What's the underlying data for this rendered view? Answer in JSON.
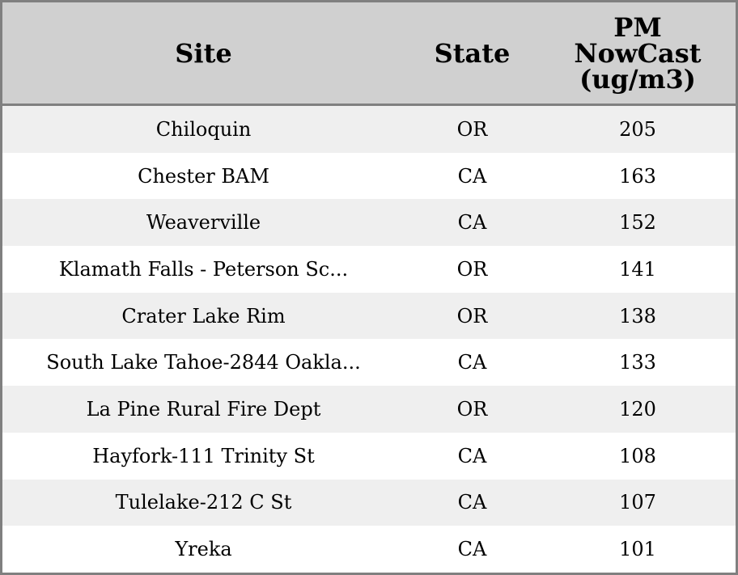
{
  "table": {
    "headers": [
      "Site",
      "State",
      "PM NowCast (ug/m3)"
    ],
    "header_lines": [
      "PM",
      "NowCast",
      "(ug/m3)"
    ],
    "rows": [
      [
        "Chiloquin",
        "OR",
        "205"
      ],
      [
        "Chester BAM",
        "CA",
        "163"
      ],
      [
        "Weaverville",
        "CA",
        "152"
      ],
      [
        "Klamath Falls - Peterson Sc...",
        "OR",
        "141"
      ],
      [
        "Crater Lake Rim",
        "OR",
        "138"
      ],
      [
        "South Lake Tahoe-2844 Oakla...",
        "CA",
        "133"
      ],
      [
        "La Pine Rural Fire Dept",
        "OR",
        "120"
      ],
      [
        "Hayfork-111 Trinity St",
        "CA",
        "108"
      ],
      [
        "Tulelake-212 C St",
        "CA",
        "107"
      ],
      [
        "Yreka",
        "CA",
        "101"
      ]
    ]
  },
  "colors": {
    "header_bg": "#d0d0d0",
    "stripe": "#efefef",
    "border": "#808080"
  }
}
